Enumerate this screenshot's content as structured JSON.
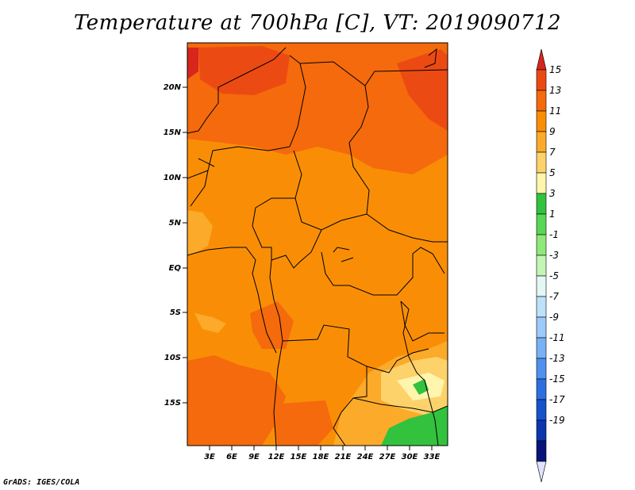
{
  "title": "Temperature at 700hPa [C], VT: 2019090712",
  "credit": "GrADS: IGES/COLA",
  "map": {
    "lat_labels": [
      "20N",
      "15N",
      "10N",
      "5N",
      "EQ",
      "5S",
      "10S",
      "15S"
    ],
    "lon_labels": [
      "3E",
      "6E",
      "9E",
      "12E",
      "15E",
      "18E",
      "21E",
      "24E",
      "27E",
      "30E",
      "33E"
    ]
  },
  "colorbar": {
    "labels": [
      "15",
      "13",
      "11",
      "9",
      "7",
      "5",
      "3",
      "1",
      "-1",
      "-3",
      "-5",
      "-7",
      "-9",
      "-11",
      "-13",
      "-15",
      "-17",
      "-19"
    ],
    "colors": [
      "#d7261c",
      "#ec4a13",
      "#f46a0c",
      "#f98e06",
      "#fbaa2a",
      "#fdd26a",
      "#fff5ad",
      "#33c23e",
      "#58d754",
      "#8fe87a",
      "#c3f5b4",
      "#e4f7f4",
      "#bfe0fb",
      "#9ccbf9",
      "#78b2f4",
      "#4f92ee",
      "#2d6fe0",
      "#1552cc",
      "#0c36ad",
      "#06147a",
      "#e2e2ff"
    ]
  }
}
